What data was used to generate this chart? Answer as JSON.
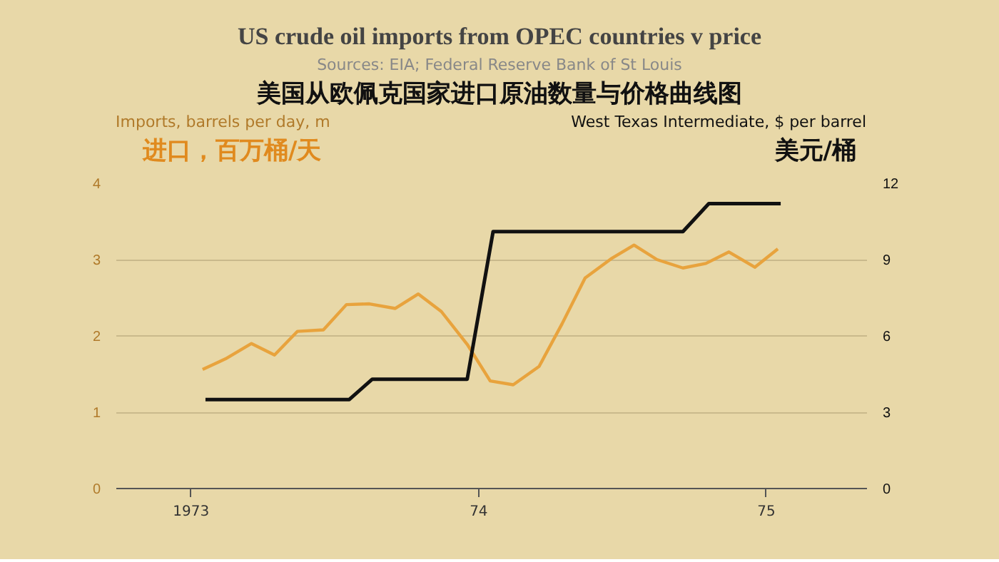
{
  "chart_data": {
    "type": "line",
    "title": "US crude oil imports from OPEC countries v price",
    "subtitle": "Sources: EIA; Federal Reserve Bank of St Louis",
    "annotations": [
      "美国从欧佩克国家进口原油数量与价格曲线图",
      "进口，百万桶/天",
      "美元/桶"
    ],
    "ylabel": "Imports, barrels per day, m",
    "y2label": "West Texas Intermediate, $ per barrel",
    "x": [
      1973.04,
      1973.12,
      1973.21,
      1973.29,
      1973.37,
      1973.46,
      1973.54,
      1973.62,
      1973.71,
      1973.79,
      1973.87,
      1973.96,
      1974.04,
      1974.12,
      1974.21,
      1974.29,
      1974.37,
      1974.46,
      1974.54,
      1974.62,
      1974.71,
      1974.79,
      1974.87,
      1974.96,
      1975.04
    ],
    "series": [
      {
        "color": "#e8a33d",
        "values": [
          1.56,
          1.7,
          1.9,
          1.75,
          2.06,
          2.08,
          2.41,
          2.42,
          2.36,
          2.55,
          2.32,
          1.89,
          1.41,
          1.36,
          1.6,
          2.16,
          2.76,
          3.01,
          3.19,
          3.0,
          2.89,
          2.95,
          3.1,
          2.9,
          3.14
        ]
      },
      {
        "color": "#111111",
        "axis": "y2",
        "x": [
          1973.05,
          1973.55,
          1973.63,
          1973.96,
          1974.05,
          1974.71,
          1974.8,
          1975.05
        ],
        "values": [
          3.5,
          3.5,
          4.3,
          4.3,
          10.1,
          10.1,
          11.2,
          11.2
        ]
      }
    ],
    "xlim": [
      1972.74,
      1975.35
    ],
    "xticks": [
      {
        "value": 1973,
        "label": "1973"
      },
      {
        "value": 1974,
        "label": "74"
      },
      {
        "value": 1975,
        "label": "75"
      }
    ],
    "ylim": [
      0,
      4
    ],
    "yticks": [
      0,
      1,
      2,
      3,
      4
    ],
    "y2lim": [
      0,
      12
    ],
    "y2ticks": [
      0,
      3,
      6,
      9,
      12
    ],
    "grid": "y",
    "marker": "none",
    "line_style": "solid"
  }
}
